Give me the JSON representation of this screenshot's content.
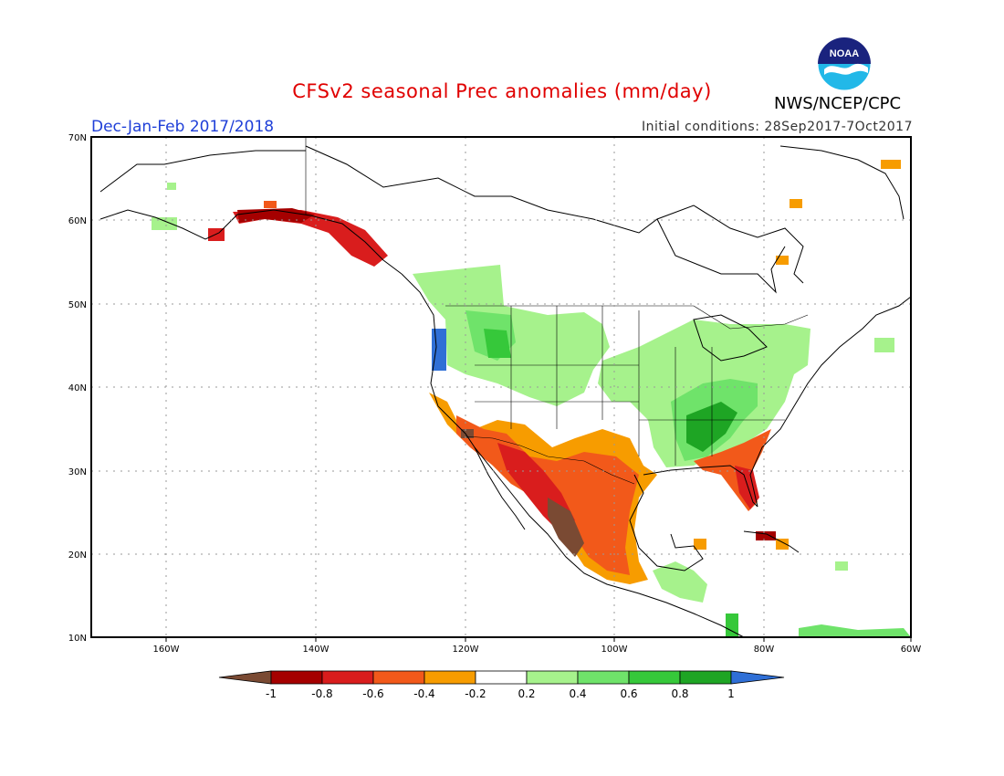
{
  "header": {
    "title": "CFSv2 seasonal Prec anomalies (mm/day)",
    "agency": "NWS/NCEP/CPC",
    "logo_text": "NOAA",
    "period": "Dec-Jan-Feb 2017/2018",
    "initial_conditions": "Initial conditions: 28Sep2017-7Oct2017"
  },
  "colors": {
    "title": "#e00000",
    "period": "#1f3fd8",
    "map_border": "#000000",
    "grid": "#999999",
    "coast": "#000000"
  },
  "axes": {
    "lon_labels": [
      "160W",
      "140W",
      "120W",
      "100W",
      "80W",
      "60W"
    ],
    "lat_labels": [
      "70N",
      "60N",
      "50N",
      "40N",
      "30N",
      "20N",
      "10N"
    ]
  },
  "colorbar": {
    "ticks": [
      "-1",
      "-0.8",
      "-0.6",
      "-0.4",
      "-0.2",
      "0.2",
      "0.4",
      "0.6",
      "0.8",
      "1"
    ],
    "low_color": "#7a4a33",
    "high_color": "#2f6fd6",
    "bins": [
      "#a50000",
      "#d91d1d",
      "#f2591a",
      "#f79c00",
      "#ffffff",
      "#a6f28c",
      "#6fe36a",
      "#36c83a",
      "#1ea524"
    ]
  }
}
